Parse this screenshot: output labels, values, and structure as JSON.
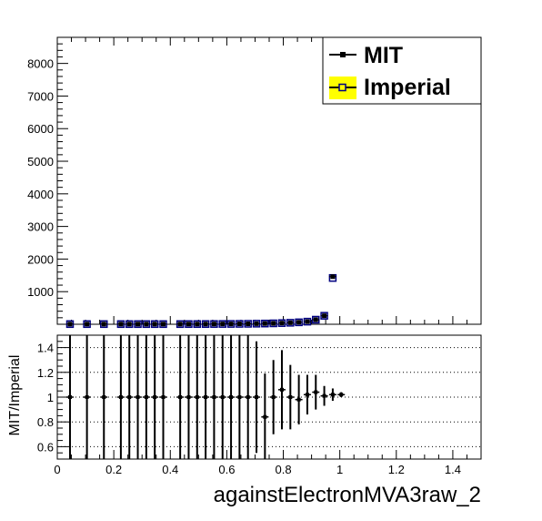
{
  "chart_data": [
    {
      "type": "scatter",
      "name_key": "main",
      "xlim": [
        0,
        1.5
      ],
      "ylim": [
        0,
        8800
      ],
      "yticks": [
        1000,
        2000,
        3000,
        4000,
        5000,
        6000,
        7000,
        8000
      ],
      "ytick_labels": [
        "1000",
        "2000",
        "3000",
        "4000",
        "5000",
        "6000",
        "7000",
        "8000"
      ],
      "grid": false,
      "legend": {
        "placement": "top-right",
        "entries": [
          {
            "label": "MIT",
            "marker": "filled-square",
            "color": "#000000"
          },
          {
            "label": "Imperial",
            "marker": "open-square",
            "color": "#000080",
            "fill": "#ffff00"
          }
        ]
      },
      "series": [
        {
          "name": "MIT",
          "x": [
            0.045,
            0.105,
            0.165,
            0.225,
            0.255,
            0.285,
            0.315,
            0.345,
            0.375,
            0.435,
            0.465,
            0.495,
            0.525,
            0.555,
            0.585,
            0.615,
            0.645,
            0.675,
            0.705,
            0.735,
            0.765,
            0.795,
            0.825,
            0.855,
            0.885,
            0.915,
            0.945,
            0.975
          ],
          "y": [
            5,
            5,
            5,
            5,
            5,
            5,
            5,
            5,
            5,
            5,
            6,
            6,
            7,
            8,
            9,
            10,
            12,
            14,
            18,
            22,
            28,
            36,
            46,
            60,
            80,
            140,
            260,
            1460
          ]
        },
        {
          "name": "Imperial",
          "x": [
            0.045,
            0.105,
            0.165,
            0.225,
            0.255,
            0.285,
            0.315,
            0.345,
            0.375,
            0.435,
            0.465,
            0.495,
            0.525,
            0.555,
            0.585,
            0.615,
            0.645,
            0.675,
            0.705,
            0.735,
            0.765,
            0.795,
            0.825,
            0.855,
            0.885,
            0.915,
            0.945,
            0.975
          ],
          "y": [
            5,
            5,
            5,
            5,
            5,
            5,
            5,
            5,
            5,
            5,
            6,
            6,
            7,
            8,
            9,
            10,
            12,
            14,
            18,
            22,
            28,
            36,
            46,
            60,
            80,
            140,
            260,
            1420
          ]
        }
      ]
    },
    {
      "type": "scatter",
      "name_key": "ratio",
      "xlabel": "againstElectronMVA3raw_2",
      "ylabel": "MIT/Imperial",
      "xlim": [
        0,
        1.5
      ],
      "ylim": [
        0.5,
        1.5
      ],
      "xticks": [
        0,
        0.2,
        0.4,
        0.6,
        0.8,
        1,
        1.2,
        1.4
      ],
      "xtick_labels": [
        "0",
        "0.2",
        "0.4",
        "0.6",
        "0.8",
        "1",
        "1.2",
        "1.4"
      ],
      "yticks": [
        0.6,
        0.8,
        1,
        1.2,
        1.4
      ],
      "ytick_labels": [
        "0.6",
        "0.8",
        "1",
        "1.2",
        "1.4"
      ],
      "grid": "y-dotted",
      "series": [
        {
          "name": "MIT/Imperial",
          "x": [
            0.045,
            0.105,
            0.165,
            0.225,
            0.255,
            0.285,
            0.315,
            0.345,
            0.375,
            0.435,
            0.465,
            0.495,
            0.525,
            0.555,
            0.585,
            0.615,
            0.645,
            0.675,
            0.705,
            0.735,
            0.765,
            0.795,
            0.825,
            0.855,
            0.885,
            0.915,
            0.945,
            0.975,
            1.005
          ],
          "y": [
            1.0,
            1.0,
            1.0,
            1.0,
            1.0,
            1.0,
            1.0,
            1.0,
            1.0,
            1.0,
            1.0,
            1.0,
            1.0,
            1.0,
            1.0,
            1.0,
            1.0,
            1.0,
            1.0,
            0.84,
            1.0,
            1.06,
            1.0,
            0.98,
            1.02,
            1.04,
            1.01,
            1.02,
            1.02
          ],
          "err": [
            1.0,
            1.0,
            1.0,
            1.0,
            1.0,
            1.0,
            1.0,
            1.0,
            1.0,
            1.0,
            1.0,
            1.0,
            1.0,
            1.0,
            1.0,
            1.0,
            1.0,
            1.0,
            0.45,
            0.35,
            0.3,
            0.32,
            0.26,
            0.2,
            0.16,
            0.14,
            0.08,
            0.05,
            0.02
          ]
        }
      ]
    }
  ]
}
